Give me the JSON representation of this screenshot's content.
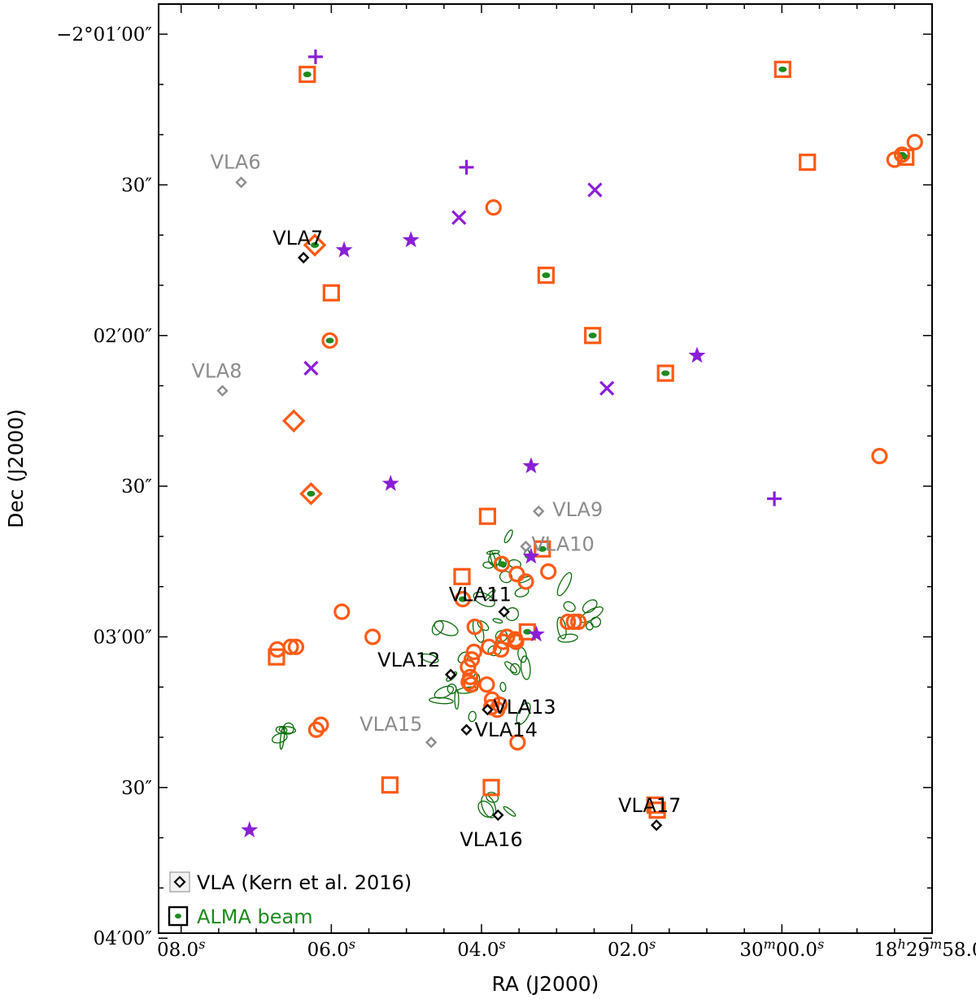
{
  "chart_data": {
    "type": "scatter",
    "title": "",
    "xlabel": "RA (J2000)",
    "ylabel": "Dec (J2000)",
    "colors": {
      "orange": "#ff5a14",
      "purple": "#8a1fd6",
      "green": "#1e8a1e",
      "dark_green": "#0b6b0b",
      "gray": "#8c8c8c",
      "black": "#000000"
    },
    "x_axis": {
      "unit": "seconds of time relative to RA 18h29m58.0s",
      "range": [
        10.3,
        0.0
      ],
      "ticks": [
        {
          "value": 10.0,
          "label": "08.0",
          "sup": "s"
        },
        {
          "value": 8.0,
          "label": "06.0",
          "sup": "s"
        },
        {
          "value": 6.0,
          "label": "04.0",
          "sup": "s"
        },
        {
          "value": 4.0,
          "label": "02.0",
          "sup": "s"
        },
        {
          "value": 2.0,
          "label": "30",
          "sup2": "m",
          "label2": "00.0",
          "sup": "s"
        },
        {
          "value": 0.0,
          "label": "18",
          "sup2": "h",
          "label2": "29",
          "sup3": "m",
          "label3": "58.0",
          "sup": "s"
        }
      ]
    },
    "y_axis": {
      "unit": "arcsec offset from -2 deg 01 arcmin 00 arcsec (positive = south)",
      "range": [
        -6.0,
        179.0
      ],
      "ticks": [
        {
          "value": 0,
          "label": "−2°01′00″"
        },
        {
          "value": 30,
          "label": "30″"
        },
        {
          "value": 60,
          "label": "02′00″"
        },
        {
          "value": 90,
          "label": "30″"
        },
        {
          "value": 120,
          "label": "03′00″"
        },
        {
          "value": 150,
          "label": "30″"
        },
        {
          "value": 180,
          "label": "04′00″"
        }
      ]
    },
    "squares": [
      [
        8.32,
        8.0
      ],
      [
        1.99,
        7.0
      ],
      [
        1.66,
        25.5
      ],
      [
        0.35,
        24.5
      ],
      [
        5.14,
        48.0
      ],
      [
        4.52,
        60.0
      ],
      [
        3.55,
        67.5
      ],
      [
        8.0,
        51.5
      ],
      [
        5.92,
        96.0
      ],
      [
        5.19,
        102.5
      ],
      [
        6.26,
        108.0
      ],
      [
        5.39,
        119.0
      ],
      [
        8.73,
        124.0
      ],
      [
        7.22,
        149.5
      ],
      [
        3.66,
        154.5
      ],
      [
        3.69,
        153.5
      ],
      [
        5.87,
        150.0
      ]
    ],
    "circles": [
      [
        5.84,
        34.5
      ],
      [
        8.02,
        61.0
      ],
      [
        0.23,
        21.5
      ],
      [
        0.4,
        24.0
      ],
      [
        0.5,
        25.0
      ],
      [
        0.7,
        84.0
      ],
      [
        5.73,
        105.5
      ],
      [
        5.53,
        107.5
      ],
      [
        5.41,
        109.0
      ],
      [
        4.85,
        117.0
      ],
      [
        4.77,
        117.0
      ],
      [
        4.71,
        117.0
      ],
      [
        7.86,
        115.0
      ],
      [
        7.45,
        120.0
      ],
      [
        5.66,
        120.0
      ],
      [
        5.71,
        121.0
      ],
      [
        5.55,
        120.5
      ],
      [
        5.54,
        121.0
      ],
      [
        6.25,
        112.5
      ],
      [
        6.09,
        118.0
      ],
      [
        5.74,
        122.5
      ],
      [
        5.9,
        122.0
      ],
      [
        6.1,
        123.0
      ],
      [
        6.13,
        124.5
      ],
      [
        6.18,
        126.0
      ],
      [
        6.15,
        128.0
      ],
      [
        6.17,
        129.0
      ],
      [
        5.93,
        129.5
      ],
      [
        5.86,
        132.5
      ],
      [
        5.76,
        133.5
      ],
      [
        5.87,
        134.0
      ],
      [
        5.79,
        134.5
      ],
      [
        6.14,
        129.5
      ],
      [
        8.47,
        122.0
      ],
      [
        8.54,
        122.0
      ],
      [
        8.72,
        122.5
      ],
      [
        8.14,
        137.5
      ],
      [
        8.2,
        138.5
      ],
      [
        5.52,
        141.0
      ],
      [
        5.11,
        107.0
      ]
    ],
    "diamonds": [
      [
        8.22,
        42.0
      ],
      [
        8.5,
        77.0
      ],
      [
        8.27,
        91.5
      ]
    ],
    "plus": [
      [
        8.21,
        4.5
      ],
      [
        6.2,
        26.5
      ],
      [
        2.1,
        92.5
      ]
    ],
    "cross": [
      [
        6.3,
        36.5
      ],
      [
        4.49,
        31.0
      ],
      [
        8.27,
        66.5
      ],
      [
        4.33,
        70.5
      ]
    ],
    "star": [
      [
        7.83,
        43.0
      ],
      [
        6.94,
        41.0
      ],
      [
        5.34,
        86.0
      ],
      [
        7.21,
        89.5
      ],
      [
        3.13,
        64.0
      ],
      [
        5.34,
        104.0
      ],
      [
        5.27,
        119.5
      ],
      [
        9.09,
        158.5
      ]
    ],
    "green_blobs": [
      [
        8.32,
        8.0
      ],
      [
        1.99,
        7.0
      ],
      [
        8.22,
        42.0
      ],
      [
        8.02,
        61.0
      ],
      [
        5.14,
        48.0
      ],
      [
        4.52,
        60.0
      ],
      [
        5.39,
        119.0
      ],
      [
        8.27,
        91.5
      ],
      [
        0.4,
        24.0
      ],
      [
        0.35,
        24.5
      ],
      [
        5.19,
        102.5
      ],
      [
        5.73,
        105.5
      ],
      [
        6.25,
        112.5
      ],
      [
        3.55,
        67.5
      ]
    ],
    "vla_sources": [
      {
        "name": "VLA6",
        "x": 9.2,
        "y": 29.5,
        "color": "gray",
        "label_dx": -38,
        "label_dy": -17
      },
      {
        "name": "VLA7",
        "x": 8.37,
        "y": 44.5,
        "color": "black",
        "label_dx": -38,
        "label_dy": -16
      },
      {
        "name": "VLA8",
        "x": 9.45,
        "y": 71.0,
        "color": "gray",
        "label_dx": -38,
        "label_dy": -16
      },
      {
        "name": "VLA9",
        "x": 5.24,
        "y": 95.0,
        "color": "gray",
        "label_dx": 17,
        "label_dy": 6
      },
      {
        "name": "VLA10",
        "x": 5.41,
        "y": 102.0,
        "color": "gray",
        "label_dx": 7,
        "label_dy": 5
      },
      {
        "name": "VLA11",
        "x": 5.7,
        "y": 115.0,
        "color": "black",
        "label_dx": -68,
        "label_dy": -13
      },
      {
        "name": "VLA12",
        "x": 6.41,
        "y": 127.5,
        "color": "black",
        "label_dx": -90,
        "label_dy": -10
      },
      {
        "name": "VLA13",
        "x": 5.92,
        "y": 134.5,
        "color": "black",
        "label_dx": 7,
        "label_dy": 5
      },
      {
        "name": "VLA14",
        "x": 6.2,
        "y": 138.5,
        "color": "black",
        "label_dx": 10,
        "label_dy": 8
      },
      {
        "name": "VLA15",
        "x": 6.67,
        "y": 141.0,
        "color": "gray",
        "label_dx": -88,
        "label_dy": -14
      },
      {
        "name": "VLA16",
        "x": 5.78,
        "y": 155.5,
        "color": "black",
        "label_dx": -47,
        "label_dy": 38
      },
      {
        "name": "VLA17",
        "x": 3.67,
        "y": 157.5,
        "color": "black",
        "label_dx": -47,
        "label_dy": -16
      }
    ],
    "legend": {
      "position": "lower-left",
      "items": [
        {
          "label": "VLA (Kern et al. 2016)",
          "symbol": "diamond",
          "color": "black"
        },
        {
          "label": "ALMA beam",
          "symbol": "square",
          "color": "green"
        }
      ]
    }
  }
}
